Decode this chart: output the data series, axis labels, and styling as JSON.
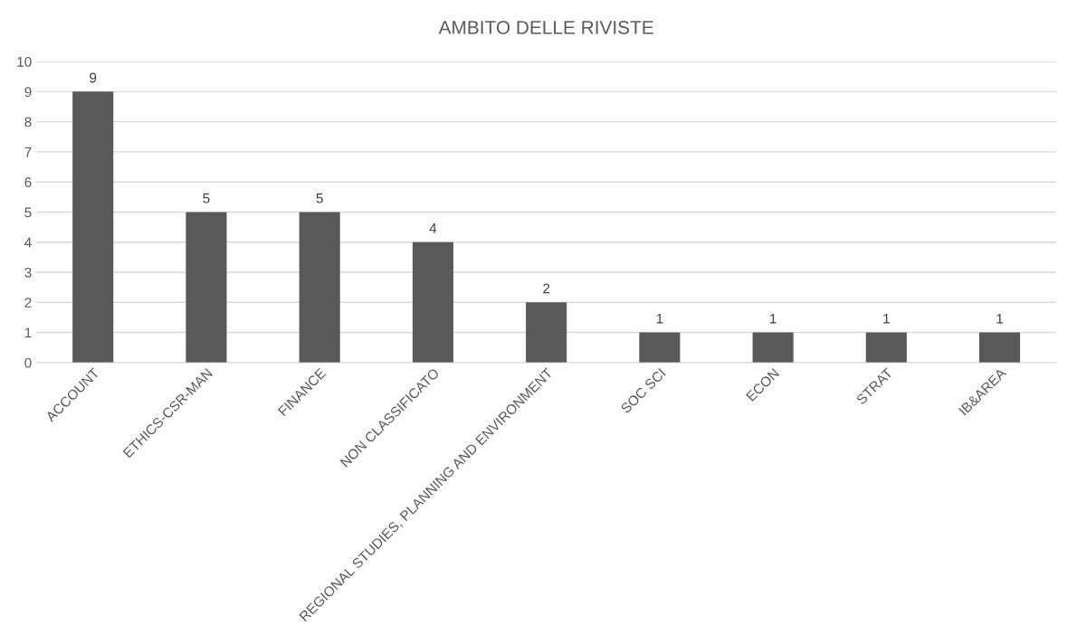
{
  "chart_data": {
    "type": "bar",
    "title": "AMBITO DELLE RIVISTE",
    "categories": [
      "ACCOUNT",
      "ETHICS-CSR-MAN",
      "FINANCE",
      "NON CLASSIFICATO",
      "REGIONAL STUDIES, PLANNING AND ENVIRONMENT",
      "SOC SCI",
      "ECON",
      "STRAT",
      "IB&AREA"
    ],
    "values": [
      9,
      5,
      5,
      4,
      2,
      1,
      1,
      1,
      1
    ],
    "color": "#595959",
    "ylim": [
      0,
      10
    ],
    "yticks": [
      0,
      1,
      2,
      3,
      4,
      5,
      6,
      7,
      8,
      9,
      10
    ],
    "grid": "y",
    "data_labels": true
  }
}
